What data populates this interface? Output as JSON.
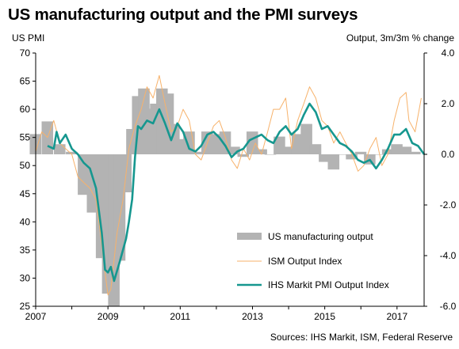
{
  "title": "US manufacturing output and the PMI surveys",
  "source": "Sources: IHS Markit, ISM, Federal Reserve",
  "chart_data": {
    "type": "line",
    "title": "US manufacturing output and the PMI surveys",
    "left_axis_label": "US PMI",
    "right_axis_label": "Output, 3m/3m % change",
    "left_ylim": [
      25,
      70
    ],
    "left_ticks": [
      "25",
      "30",
      "35",
      "40",
      "45",
      "50",
      "55",
      "60",
      "65",
      "70"
    ],
    "right_ylim": [
      -6.0,
      4.0
    ],
    "right_ticks": [
      "-6.0",
      "-4.0",
      "-2.0",
      "0.0",
      "2.0",
      "4.0"
    ],
    "xlim": [
      2007.0,
      2017.75
    ],
    "x_ticks": [
      "2007",
      "2009",
      "2011",
      "2013",
      "2015",
      "2017"
    ],
    "grid": false,
    "legend_position": "bottom-center",
    "colors": {
      "bars": "#b3b3b3",
      "ism": "#f7b26b",
      "ihs": "#16978f",
      "axis": "#000000"
    },
    "series": [
      {
        "name": "US manufacturing output",
        "kind": "bar",
        "axis": "right",
        "points": [
          [
            2007.0,
            0.8
          ],
          [
            2007.33,
            1.3
          ],
          [
            2007.67,
            0.4
          ],
          [
            2008.0,
            0.1
          ],
          [
            2008.33,
            -1.6
          ],
          [
            2008.58,
            -2.3
          ],
          [
            2008.83,
            -4.1
          ],
          [
            2009.0,
            -5.5
          ],
          [
            2009.17,
            -6.0
          ],
          [
            2009.33,
            -4.2
          ],
          [
            2009.5,
            -1.5
          ],
          [
            2009.67,
            1.0
          ],
          [
            2009.83,
            2.3
          ],
          [
            2010.0,
            2.6
          ],
          [
            2010.17,
            1.8
          ],
          [
            2010.33,
            2.0
          ],
          [
            2010.5,
            2.6
          ],
          [
            2010.67,
            2.4
          ],
          [
            2010.83,
            1.2
          ],
          [
            2011.0,
            0.6
          ],
          [
            2011.25,
            0.9
          ],
          [
            2011.5,
            0.1
          ],
          [
            2011.75,
            0.9
          ],
          [
            2012.0,
            0.8
          ],
          [
            2012.25,
            0.9
          ],
          [
            2012.5,
            0.3
          ],
          [
            2012.75,
            -0.1
          ],
          [
            2013.0,
            0.9
          ],
          [
            2013.25,
            0.2
          ],
          [
            2013.5,
            0.0
          ],
          [
            2013.75,
            0.7
          ],
          [
            2014.0,
            0.3
          ],
          [
            2014.25,
            0.8
          ],
          [
            2014.5,
            1.2
          ],
          [
            2014.75,
            0.4
          ],
          [
            2015.0,
            -0.3
          ],
          [
            2015.25,
            -0.6
          ],
          [
            2015.5,
            0.0
          ],
          [
            2015.75,
            -0.2
          ],
          [
            2016.0,
            0.1
          ],
          [
            2016.25,
            -0.4
          ],
          [
            2016.5,
            0.0
          ],
          [
            2016.75,
            0.2
          ],
          [
            2017.0,
            0.4
          ],
          [
            2017.25,
            0.3
          ],
          [
            2017.5,
            0.1
          ]
        ]
      },
      {
        "name": "ISM Output Index",
        "kind": "line",
        "axis": "left",
        "points": [
          [
            2007.0,
            52.5
          ],
          [
            2007.17,
            56.0
          ],
          [
            2007.33,
            55.0
          ],
          [
            2007.5,
            58.0
          ],
          [
            2007.67,
            54.0
          ],
          [
            2007.83,
            53.0
          ],
          [
            2008.0,
            52.0
          ],
          [
            2008.17,
            48.0
          ],
          [
            2008.33,
            47.0
          ],
          [
            2008.5,
            46.0
          ],
          [
            2008.67,
            44.0
          ],
          [
            2008.83,
            36.0
          ],
          [
            2008.92,
            31.0
          ],
          [
            2009.0,
            27.0
          ],
          [
            2009.08,
            28.0
          ],
          [
            2009.25,
            38.0
          ],
          [
            2009.42,
            44.0
          ],
          [
            2009.58,
            53.0
          ],
          [
            2009.75,
            57.0
          ],
          [
            2009.92,
            60.0
          ],
          [
            2010.08,
            64.0
          ],
          [
            2010.25,
            62.0
          ],
          [
            2010.42,
            66.0
          ],
          [
            2010.58,
            61.0
          ],
          [
            2010.75,
            56.0
          ],
          [
            2010.92,
            57.0
          ],
          [
            2011.08,
            60.0
          ],
          [
            2011.25,
            58.0
          ],
          [
            2011.42,
            52.0
          ],
          [
            2011.58,
            51.0
          ],
          [
            2011.75,
            54.0
          ],
          [
            2011.92,
            57.0
          ],
          [
            2012.08,
            58.0
          ],
          [
            2012.25,
            55.0
          ],
          [
            2012.42,
            51.0
          ],
          [
            2012.58,
            49.5
          ],
          [
            2012.75,
            53.0
          ],
          [
            2012.92,
            51.0
          ],
          [
            2013.08,
            54.0
          ],
          [
            2013.25,
            52.0
          ],
          [
            2013.42,
            56.0
          ],
          [
            2013.58,
            60.0
          ],
          [
            2013.75,
            60.0
          ],
          [
            2013.92,
            62.0
          ],
          [
            2014.08,
            53.0
          ],
          [
            2014.25,
            58.0
          ],
          [
            2014.42,
            61.0
          ],
          [
            2014.58,
            64.0
          ],
          [
            2014.75,
            62.0
          ],
          [
            2014.92,
            58.0
          ],
          [
            2015.08,
            57.0
          ],
          [
            2015.25,
            54.0
          ],
          [
            2015.42,
            56.0
          ],
          [
            2015.58,
            54.0
          ],
          [
            2015.75,
            52.0
          ],
          [
            2015.92,
            49.0
          ],
          [
            2016.08,
            50.0
          ],
          [
            2016.25,
            53.0
          ],
          [
            2016.42,
            55.0
          ],
          [
            2016.58,
            50.0
          ],
          [
            2016.75,
            52.0
          ],
          [
            2016.92,
            58.0
          ],
          [
            2017.08,
            62.0
          ],
          [
            2017.25,
            63.0
          ],
          [
            2017.33,
            58.0
          ],
          [
            2017.5,
            56.0
          ],
          [
            2017.67,
            62.0
          ]
        ]
      },
      {
        "name": "IHS Markit PMI Output Index",
        "kind": "line",
        "axis": "left",
        "points": [
          [
            2007.33,
            53.5
          ],
          [
            2007.5,
            53.0
          ],
          [
            2007.58,
            56.0
          ],
          [
            2007.67,
            54.0
          ],
          [
            2007.83,
            55.5
          ],
          [
            2008.0,
            53.0
          ],
          [
            2008.17,
            52.0
          ],
          [
            2008.33,
            50.5
          ],
          [
            2008.5,
            49.5
          ],
          [
            2008.67,
            46.0
          ],
          [
            2008.83,
            38.0
          ],
          [
            2008.92,
            31.5
          ],
          [
            2009.0,
            31.0
          ],
          [
            2009.08,
            32.0
          ],
          [
            2009.17,
            29.5
          ],
          [
            2009.33,
            33.0
          ],
          [
            2009.5,
            37.0
          ],
          [
            2009.58,
            40.0
          ],
          [
            2009.67,
            44.0
          ],
          [
            2009.75,
            51.5
          ],
          [
            2009.83,
            57.0
          ],
          [
            2009.92,
            56.5
          ],
          [
            2010.08,
            58.0
          ],
          [
            2010.25,
            57.5
          ],
          [
            2010.42,
            60.0
          ],
          [
            2010.58,
            57.5
          ],
          [
            2010.75,
            54.5
          ],
          [
            2010.92,
            57.5
          ],
          [
            2011.08,
            56.0
          ],
          [
            2011.25,
            53.0
          ],
          [
            2011.42,
            52.5
          ],
          [
            2011.58,
            53.5
          ],
          [
            2011.75,
            55.5
          ],
          [
            2011.92,
            56.0
          ],
          [
            2012.08,
            55.0
          ],
          [
            2012.25,
            53.5
          ],
          [
            2012.42,
            51.5
          ],
          [
            2012.58,
            52.5
          ],
          [
            2012.75,
            53.0
          ],
          [
            2012.92,
            54.5
          ],
          [
            2013.08,
            55.0
          ],
          [
            2013.25,
            55.5
          ],
          [
            2013.42,
            54.5
          ],
          [
            2013.58,
            54.0
          ],
          [
            2013.75,
            56.0
          ],
          [
            2013.92,
            57.0
          ],
          [
            2014.08,
            55.5
          ],
          [
            2014.25,
            56.5
          ],
          [
            2014.42,
            59.0
          ],
          [
            2014.58,
            61.0
          ],
          [
            2014.75,
            59.5
          ],
          [
            2014.92,
            56.5
          ],
          [
            2015.08,
            57.0
          ],
          [
            2015.25,
            55.5
          ],
          [
            2015.42,
            54.0
          ],
          [
            2015.58,
            53.5
          ],
          [
            2015.75,
            52.5
          ],
          [
            2015.92,
            51.0
          ],
          [
            2016.08,
            50.5
          ],
          [
            2016.25,
            51.0
          ],
          [
            2016.42,
            49.5
          ],
          [
            2016.58,
            51.0
          ],
          [
            2016.75,
            53.0
          ],
          [
            2016.92,
            55.5
          ],
          [
            2017.08,
            55.5
          ],
          [
            2017.25,
            56.5
          ],
          [
            2017.42,
            54.0
          ],
          [
            2017.58,
            53.5
          ],
          [
            2017.75,
            52.0
          ]
        ]
      }
    ]
  }
}
